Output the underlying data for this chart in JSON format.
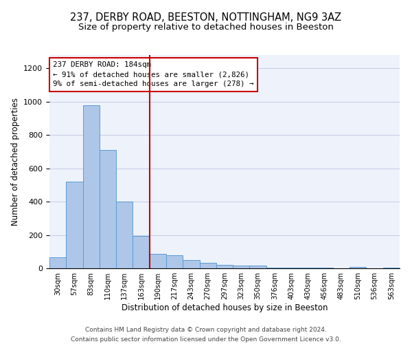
{
  "title1": "237, DERBY ROAD, BEESTON, NOTTINGHAM, NG9 3AZ",
  "title2": "Size of property relative to detached houses in Beeston",
  "xlabel": "Distribution of detached houses by size in Beeston",
  "ylabel": "Number of detached properties",
  "categories": [
    "30sqm",
    "57sqm",
    "83sqm",
    "110sqm",
    "137sqm",
    "163sqm",
    "190sqm",
    "217sqm",
    "243sqm",
    "270sqm",
    "297sqm",
    "323sqm",
    "350sqm",
    "376sqm",
    "403sqm",
    "430sqm",
    "456sqm",
    "483sqm",
    "510sqm",
    "536sqm",
    "563sqm"
  ],
  "values": [
    65,
    520,
    980,
    710,
    400,
    195,
    85,
    80,
    50,
    35,
    20,
    15,
    15,
    5,
    5,
    5,
    5,
    0,
    8,
    0,
    5
  ],
  "bar_color": "#aec6e8",
  "bar_edge_color": "#5b9bd5",
  "highlight_line_color": "#cc0000",
  "vline_index": 6,
  "annotation_line1": "237 DERBY ROAD: 184sqm",
  "annotation_line2": "← 91% of detached houses are smaller (2,826)",
  "annotation_line3": "9% of semi-detached houses are larger (278) →",
  "annotation_box_edge": "#cc0000",
  "ylim": [
    0,
    1280
  ],
  "yticks": [
    0,
    200,
    400,
    600,
    800,
    1000,
    1200
  ],
  "footnote": "Contains HM Land Registry data © Crown copyright and database right 2024.\nContains public sector information licensed under the Open Government Licence v3.0.",
  "bg_color": "#eef2fb",
  "grid_color": "#c8cfe8",
  "title1_fontsize": 10.5,
  "title2_fontsize": 9.5,
  "xlabel_fontsize": 8.5,
  "ylabel_fontsize": 8.5,
  "footnote_fontsize": 6.5
}
